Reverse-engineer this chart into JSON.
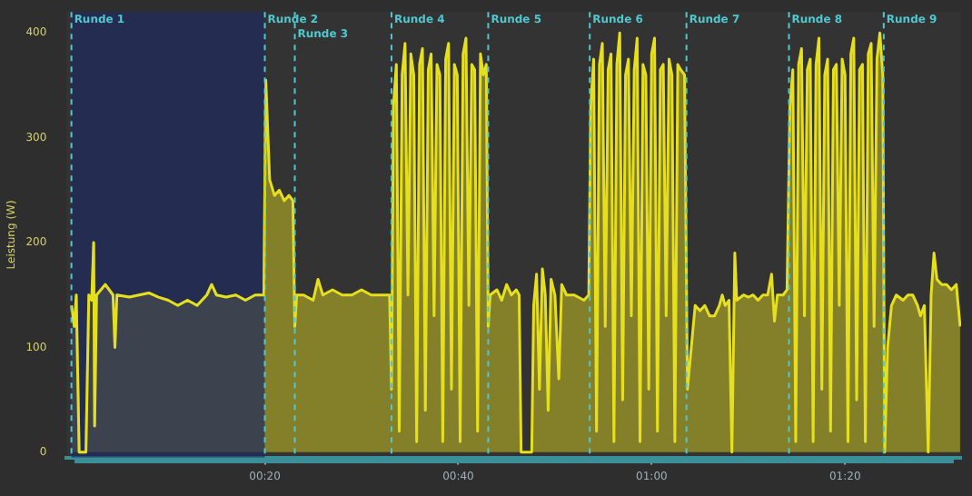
{
  "chart_data": {
    "type": "area",
    "ylabel": "Leistung (W)",
    "xlim": [
      -0.5,
      92
    ],
    "ylim": [
      -5,
      420
    ],
    "xticks": [
      {
        "value": 20,
        "label": "00:20"
      },
      {
        "value": 40,
        "label": "00:40"
      },
      {
        "value": 60,
        "label": "01:00"
      },
      {
        "value": 80,
        "label": "01:20"
      }
    ],
    "yticks": [
      0,
      100,
      200,
      300,
      400
    ],
    "grid": false,
    "legend": false,
    "marker": "none",
    "line_style": "solid",
    "series": [
      {
        "color": "#e6df1e",
        "x": [
          0,
          0.3,
          0.5,
          0.8,
          1.5,
          1.8,
          2.1,
          2.3,
          2.4,
          2.6,
          3.5,
          4.3,
          4.5,
          4.7,
          6,
          7,
          8,
          9,
          10,
          11,
          12,
          13,
          14,
          14.5,
          15,
          16,
          17,
          18,
          19,
          19.9,
          20.1,
          20.5,
          21,
          21.5,
          22,
          22.5,
          22.9,
          23.1,
          23.3,
          24,
          25,
          25.5,
          26,
          27,
          28,
          29,
          30,
          31,
          32,
          32.9,
          33.1,
          33.3,
          33.6,
          33.9,
          34.2,
          34.5,
          34.8,
          35.1,
          35.4,
          35.7,
          36,
          36.3,
          36.6,
          36.9,
          37.2,
          37.5,
          37.8,
          38.1,
          38.4,
          38.7,
          39,
          39.3,
          39.6,
          39.9,
          40.2,
          40.5,
          40.8,
          41.1,
          41.4,
          41.7,
          42,
          42.3,
          42.6,
          42.9,
          43.1,
          43.3,
          44,
          44.5,
          45,
          45.5,
          46,
          46.3,
          46.5,
          47.6,
          47.8,
          48.1,
          48.4,
          48.7,
          49,
          49.3,
          49.6,
          50,
          50.4,
          50.7,
          51.2,
          52,
          53,
          53.5,
          53.7,
          54,
          54.3,
          54.6,
          54.9,
          55.2,
          55.5,
          55.8,
          56.1,
          56.4,
          56.7,
          57,
          57.3,
          57.6,
          57.9,
          58.2,
          58.5,
          58.8,
          59.1,
          59.4,
          59.7,
          60,
          60.3,
          60.6,
          60.9,
          61.2,
          61.5,
          61.8,
          62.1,
          62.4,
          62.7,
          63,
          63.4,
          63.7,
          64,
          64.5,
          65,
          65.5,
          66,
          66.5,
          67,
          67.3,
          67.6,
          68,
          68.3,
          68.6,
          68.8,
          69.5,
          70,
          70.5,
          71,
          71.5,
          72,
          72.4,
          72.7,
          73,
          73.6,
          74,
          74.3,
          74.6,
          74.9,
          75.2,
          75.5,
          75.8,
          76.1,
          76.4,
          76.7,
          77,
          77.3,
          77.6,
          77.9,
          78.2,
          78.5,
          78.8,
          79.1,
          79.4,
          79.7,
          80,
          80.3,
          80.6,
          80.9,
          81.2,
          81.5,
          81.8,
          82.1,
          82.4,
          82.7,
          83,
          83.3,
          83.6,
          83.9,
          84.1,
          84.4,
          84.8,
          85.3,
          86,
          86.5,
          87,
          87.5,
          87.8,
          88.2,
          88.6,
          88.9,
          89.2,
          89.5,
          90,
          90.5,
          91,
          91.5,
          91.9
        ],
        "values": [
          140,
          120,
          150,
          0,
          0,
          150,
          145,
          200,
          25,
          150,
          160,
          150,
          100,
          150,
          148,
          150,
          152,
          148,
          145,
          140,
          145,
          140,
          150,
          160,
          150,
          148,
          150,
          145,
          150,
          150,
          355,
          260,
          245,
          250,
          240,
          245,
          240,
          120,
          150,
          150,
          145,
          165,
          150,
          155,
          150,
          150,
          155,
          150,
          150,
          150,
          60,
          330,
          370,
          20,
          360,
          390,
          150,
          380,
          360,
          10,
          370,
          385,
          40,
          365,
          380,
          130,
          370,
          360,
          10,
          375,
          390,
          60,
          370,
          360,
          10,
          380,
          395,
          140,
          370,
          365,
          20,
          380,
          360,
          370,
          120,
          150,
          155,
          145,
          160,
          150,
          155,
          150,
          0,
          0,
          140,
          170,
          60,
          175,
          150,
          40,
          165,
          150,
          70,
          160,
          150,
          150,
          145,
          150,
          330,
          375,
          20,
          370,
          390,
          120,
          365,
          380,
          10,
          370,
          400,
          50,
          360,
          375,
          130,
          365,
          395,
          10,
          370,
          360,
          60,
          380,
          395,
          20,
          365,
          370,
          130,
          375,
          360,
          10,
          370,
          365,
          360,
          60,
          90,
          140,
          135,
          140,
          130,
          130,
          140,
          150,
          140,
          145,
          0,
          190,
          145,
          150,
          148,
          150,
          145,
          150,
          150,
          170,
          125,
          150,
          150,
          155,
          330,
          365,
          10,
          370,
          385,
          130,
          365,
          375,
          10,
          370,
          395,
          60,
          360,
          375,
          20,
          365,
          370,
          140,
          375,
          360,
          10,
          380,
          395,
          50,
          365,
          370,
          10,
          380,
          390,
          120,
          375,
          400,
          360,
          0,
          100,
          140,
          150,
          145,
          150,
          150,
          140,
          130,
          140,
          0,
          150,
          190,
          165,
          160,
          160,
          155,
          160,
          120
        ]
      }
    ],
    "bands": [
      {
        "axis": "x",
        "from": 0,
        "to": 20,
        "color": "#1f2a5e"
      }
    ],
    "ref_lines": [
      {
        "axis": "x",
        "value": 0,
        "label": "Runde 1",
        "color": "#4fc8d0",
        "line_style": "dashed"
      },
      {
        "axis": "x",
        "value": 20,
        "label": "Runde 2",
        "color": "#4fc8d0",
        "line_style": "dashed"
      },
      {
        "axis": "x",
        "value": 23.1,
        "label": "Runde 3",
        "color": "#4fc8d0",
        "line_style": "dashed"
      },
      {
        "axis": "x",
        "value": 33.1,
        "label": "Runde 4",
        "color": "#4fc8d0",
        "line_style": "dashed"
      },
      {
        "axis": "x",
        "value": 43.1,
        "label": "Runde 5",
        "color": "#4fc8d0",
        "line_style": "dashed"
      },
      {
        "axis": "x",
        "value": 53.6,
        "label": "Runde 6",
        "color": "#4fc8d0",
        "line_style": "dashed"
      },
      {
        "axis": "x",
        "value": 63.6,
        "label": "Runde 7",
        "color": "#4fc8d0",
        "line_style": "dashed"
      },
      {
        "axis": "x",
        "value": 74.2,
        "label": "Runde 8",
        "color": "#4fc8d0",
        "line_style": "dashed"
      },
      {
        "axis": "x",
        "value": 84,
        "label": "Runde 9",
        "color": "#4fc8d0",
        "line_style": "dashed"
      }
    ]
  }
}
